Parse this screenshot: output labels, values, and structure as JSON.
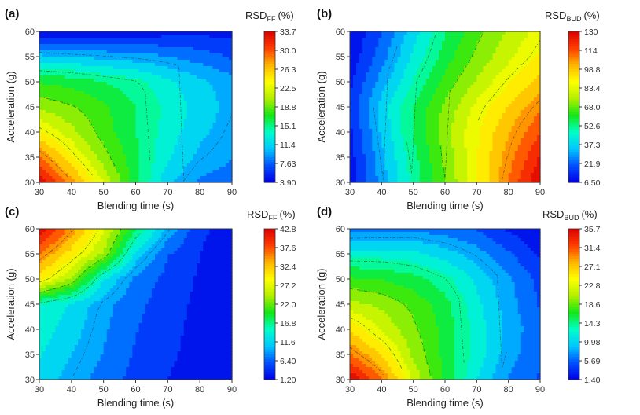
{
  "colors": {
    "scale": [
      "#0000e6",
      "#0050ff",
      "#00c8ff",
      "#00ffc8",
      "#14e614",
      "#b4f000",
      "#ffff00",
      "#ffb400",
      "#ff3c00",
      "#dc0000"
    ],
    "contour_line": "#333333",
    "axis": "#333333"
  },
  "chart_data": [
    {
      "type": "heatmap",
      "panel_label": "(a)",
      "xlabel": "Blending time (s)",
      "ylabel": "Acceleration (g)",
      "xlim": [
        30,
        90
      ],
      "ylim": [
        30,
        60
      ],
      "xticks": [
        "30",
        "40",
        "50",
        "60",
        "70",
        "80",
        "90"
      ],
      "yticks": [
        "30",
        "35",
        "40",
        "45",
        "50",
        "55",
        "60"
      ],
      "colorbar": {
        "title": "RSD",
        "title_sub": "FF",
        "title_unit": "(%)",
        "min": 3.9,
        "max": 33.7,
        "tick_labels": [
          "33.7",
          "30.0",
          "26.3",
          "22.5",
          "18.8",
          "15.1",
          "11.4",
          "7.63",
          "3.90"
        ]
      },
      "grid_x": [
        30,
        40,
        50,
        60,
        70,
        80,
        90
      ],
      "grid_y": [
        30,
        35,
        40,
        45,
        50,
        55,
        60
      ],
      "z": [
        [
          33.7,
          28.0,
          22.0,
          16.0,
          11.0,
          8.5,
          8.0
        ],
        [
          29.0,
          24.0,
          19.5,
          16.0,
          12.5,
          10.0,
          9.0
        ],
        [
          24.0,
          21.0,
          18.0,
          15.5,
          13.0,
          11.0,
          9.5
        ],
        [
          20.0,
          19.0,
          17.5,
          15.5,
          13.5,
          11.5,
          10.0
        ],
        [
          17.0,
          16.5,
          15.5,
          14.5,
          12.5,
          11.0,
          9.5
        ],
        [
          11.0,
          10.5,
          10.0,
          9.5,
          9.0,
          8.0,
          7.0
        ],
        [
          3.9,
          4.0,
          4.2,
          4.5,
          4.8,
          5.0,
          5.2
        ]
      ]
    },
    {
      "type": "heatmap",
      "panel_label": "(b)",
      "xlabel": "Blending time (s)",
      "ylabel": "Acceleration (g)",
      "xlim": [
        30,
        90
      ],
      "ylim": [
        30,
        60
      ],
      "xticks": [
        "30",
        "40",
        "50",
        "60",
        "70",
        "80",
        "90"
      ],
      "yticks": [
        "30",
        "35",
        "40",
        "45",
        "50",
        "55",
        "60"
      ],
      "colorbar": {
        "title": "RSD",
        "title_sub": "BUD",
        "title_unit": "(%)",
        "min": 6.5,
        "max": 130,
        "tick_labels": [
          "130",
          "114",
          "98.8",
          "83.4",
          "68.0",
          "52.6",
          "37.3",
          "21.9",
          "6.50"
        ]
      },
      "grid_x": [
        30,
        40,
        50,
        60,
        70,
        80,
        90
      ],
      "grid_y": [
        30,
        35,
        40,
        45,
        50,
        55,
        60
      ],
      "z": [
        [
          8.0,
          30.0,
          50.0,
          68.0,
          88.0,
          110.0,
          130.0
        ],
        [
          10.0,
          32.0,
          52.0,
          70.0,
          88.0,
          106.0,
          124.0
        ],
        [
          12.0,
          35.0,
          55.0,
          72.0,
          88.0,
          102.0,
          116.0
        ],
        [
          14.0,
          37.0,
          55.0,
          70.0,
          84.0,
          96.0,
          108.0
        ],
        [
          12.0,
          30.0,
          48.0,
          64.0,
          76.0,
          88.0,
          98.0
        ],
        [
          8.0,
          24.0,
          42.0,
          58.0,
          70.0,
          80.0,
          90.0
        ],
        [
          6.5,
          20.0,
          38.0,
          54.0,
          66.0,
          76.0,
          85.0
        ]
      ]
    },
    {
      "type": "heatmap",
      "panel_label": "(c)",
      "xlabel": "Blending time (s)",
      "ylabel": "Acceleration (g)",
      "xlim": [
        30,
        90
      ],
      "ylim": [
        30,
        60
      ],
      "xticks": [
        "30",
        "40",
        "50",
        "60",
        "70",
        "80",
        "90"
      ],
      "yticks": [
        "30",
        "35",
        "40",
        "45",
        "50",
        "55",
        "60"
      ],
      "colorbar": {
        "title": "RSD",
        "title_sub": "FF",
        "title_unit": "(%)",
        "min": 1.2,
        "max": 42.8,
        "tick_labels": [
          "42.8",
          "37.6",
          "32.4",
          "27.2",
          "22.0",
          "16.8",
          "11.6",
          "6.40",
          "1.20"
        ]
      },
      "grid_x": [
        30,
        40,
        50,
        60,
        70,
        80,
        90
      ],
      "grid_y": [
        30,
        35,
        40,
        45,
        50,
        55,
        60
      ],
      "z": [
        [
          12.0,
          9.5,
          7.0,
          5.0,
          3.5,
          2.2,
          1.2
        ],
        [
          13.0,
          10.5,
          8.0,
          5.5,
          4.0,
          2.5,
          1.4
        ],
        [
          14.0,
          11.5,
          8.5,
          6.0,
          4.2,
          2.8,
          1.6
        ],
        [
          15.0,
          12.5,
          9.0,
          6.5,
          4.5,
          3.0,
          1.8
        ],
        [
          30.0,
          24.0,
          13.0,
          7.5,
          5.0,
          3.2,
          2.0
        ],
        [
          36.0,
          30.0,
          24.0,
          12.0,
          6.0,
          3.5,
          2.2
        ],
        [
          42.8,
          35.0,
          27.0,
          18.0,
          10.0,
          4.0,
          2.5
        ]
      ]
    },
    {
      "type": "heatmap",
      "panel_label": "(d)",
      "xlabel": "Blending time (s)",
      "ylabel": "Acceleration (g)",
      "xlim": [
        30,
        90
      ],
      "ylim": [
        30,
        60
      ],
      "xticks": [
        "30",
        "40",
        "50",
        "60",
        "70",
        "80",
        "90"
      ],
      "yticks": [
        "30",
        "35",
        "40",
        "45",
        "50",
        "55",
        "60"
      ],
      "colorbar": {
        "title": "RSD",
        "title_sub": "BUD",
        "title_unit": "(%)",
        "min": 1.4,
        "max": 35.7,
        "tick_labels": [
          "35.7",
          "31.4",
          "27.1",
          "22.8",
          "18.6",
          "14.3",
          "9.98",
          "5.69",
          "1.40"
        ]
      },
      "grid_x": [
        30,
        40,
        50,
        60,
        70,
        80,
        90
      ],
      "grid_y": [
        30,
        35,
        40,
        45,
        50,
        55,
        60
      ],
      "z": [
        [
          35.7,
          30.0,
          22.0,
          16.0,
          11.0,
          7.0,
          5.0
        ],
        [
          30.0,
          26.0,
          20.0,
          16.0,
          12.0,
          8.0,
          5.5
        ],
        [
          26.0,
          22.0,
          19.0,
          16.0,
          12.0,
          8.5,
          5.5
        ],
        [
          21.0,
          20.0,
          18.0,
          15.5,
          11.5,
          8.0,
          5.0
        ],
        [
          17.0,
          16.5,
          15.5,
          13.5,
          10.5,
          7.5,
          4.5
        ],
        [
          12.0,
          12.0,
          11.5,
          10.0,
          8.0,
          5.5,
          3.0
        ],
        [
          6.0,
          6.2,
          6.5,
          6.0,
          5.0,
          3.0,
          1.4
        ]
      ]
    }
  ]
}
